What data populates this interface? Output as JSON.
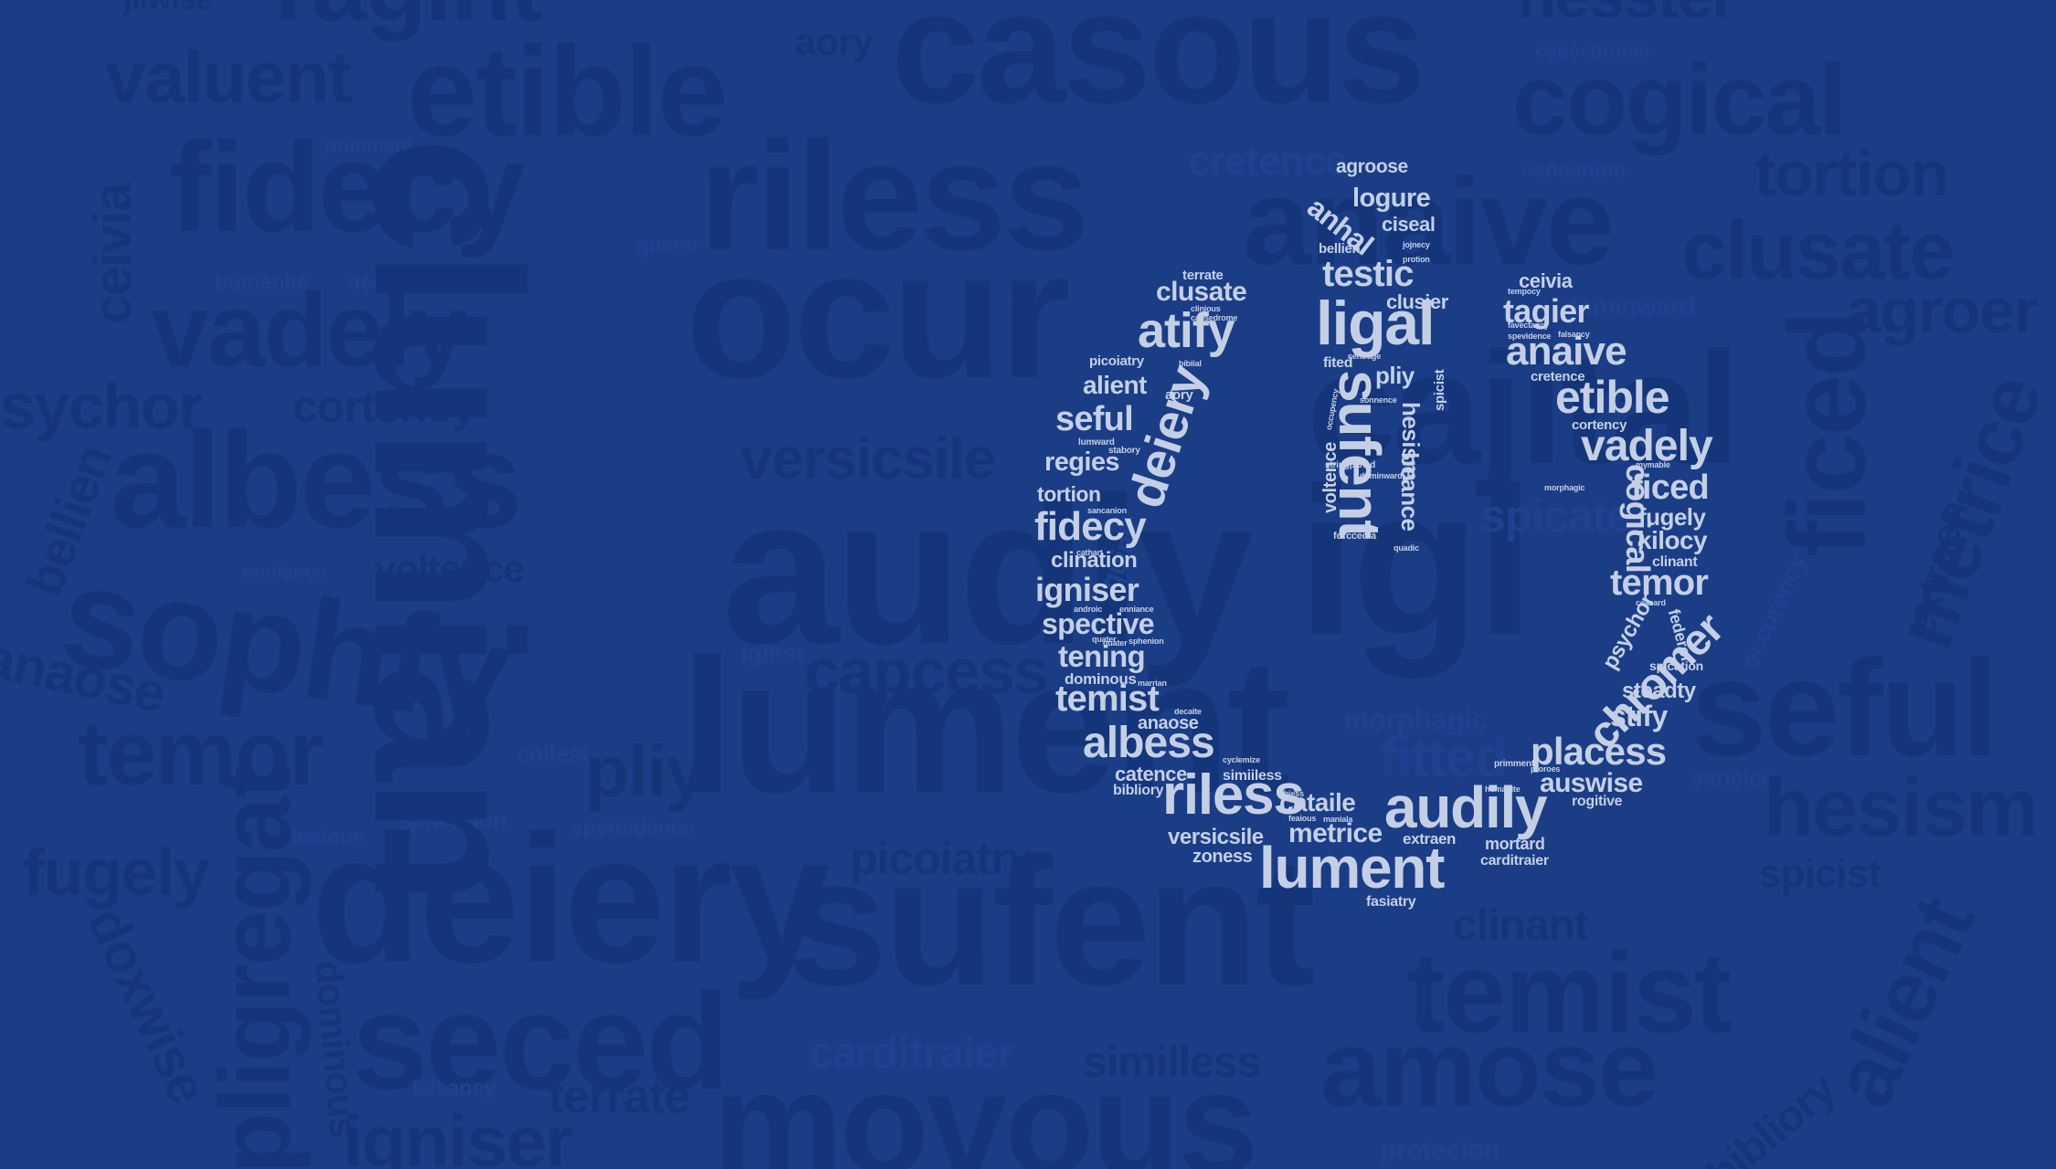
{
  "palette": {
    "background": "#1b3d86",
    "background_words": "#15357a",
    "foreground_words": "#c4cfe6"
  },
  "background_words": [
    "jilwise",
    "ragint",
    "etible",
    "valuent",
    "casous",
    "aory",
    "nesster",
    "cogical",
    "causedrome",
    "riless",
    "primment",
    "fidecy",
    "cretence",
    "anaive",
    "sancanion",
    "tortion",
    "clusate",
    "ceivia",
    "bumanite",
    "decaite",
    "quater",
    "ocur",
    "vadely",
    "dominward",
    "agroer",
    "sychor",
    "cortency",
    "versicsile",
    "albess",
    "cajital",
    "audiy",
    "igl",
    "ficed",
    "metrice",
    "spicate",
    "bellien",
    "enniance",
    "voltence",
    "sophfy",
    "quinic",
    "anaose",
    "igiest",
    "capcess",
    "occurency",
    "extraen",
    "temor",
    "lument",
    "seful",
    "collest",
    "pliy",
    "fitted",
    "sancice",
    "hesism",
    "fugely",
    "sphereion",
    "spercidence",
    "feaious",
    "pligregat",
    "picoiatry",
    "spicist",
    "deiery",
    "sufent",
    "clinant",
    "temist",
    "alient",
    "doxwise",
    "dominous",
    "seced",
    "carditraier",
    "similless",
    "falsancy",
    "terrate",
    "amose",
    "bibliory",
    "igniser",
    "movous",
    "protecion",
    "clumian",
    "morphagic"
  ],
  "power_icon_words": [
    "agroose",
    "logure",
    "anhal",
    "ciseal",
    "bellien",
    "testic",
    "ligal",
    "clusier",
    "fited",
    "pliy",
    "sufent",
    "hesism",
    "spicist",
    "beance",
    "voltence",
    "forccedia",
    "terrate",
    "clusate",
    "atify",
    "picoiatry",
    "aory",
    "alient",
    "seful",
    "deiery",
    "regies",
    "tortion",
    "fidecy",
    "clination",
    "igniser",
    "spective",
    "tening",
    "dominous",
    "temist",
    "anaose",
    "albess",
    "catence",
    "simiiless",
    "bibliory",
    "riless",
    "versicsile",
    "zoness",
    "metrice",
    "cataile",
    "audily",
    "lument",
    "extraen",
    "mortard",
    "carditraier",
    "fasiatry",
    "ceivia",
    "tagier",
    "anaive",
    "cretence",
    "etible",
    "cortency",
    "vadely",
    "cogical",
    "ficed",
    "fugely",
    "kilocy",
    "clinant",
    "temor",
    "psychor",
    "federor",
    "chromer",
    "steadty",
    "spication",
    "stify",
    "placess",
    "auswise",
    "rogitive",
    "primment",
    "stringpaned",
    "dominward",
    "lumward",
    "stabory",
    "sancanion",
    "causedrome",
    "clinious",
    "bibiial",
    "quater",
    "sphenion",
    "androic",
    "enniance",
    "marrian",
    "decaite",
    "cyclemize",
    "abiess",
    "feaious",
    "maniala",
    "humanite",
    "proroes",
    "mymable",
    "ceasard",
    "quadic",
    "sonnence",
    "jojnecy",
    "protion",
    "morphagic",
    "favectancy",
    "falsancy",
    "tempocy",
    "spevidence",
    "cathart",
    "occupency",
    "centrage",
    "quater"
  ]
}
